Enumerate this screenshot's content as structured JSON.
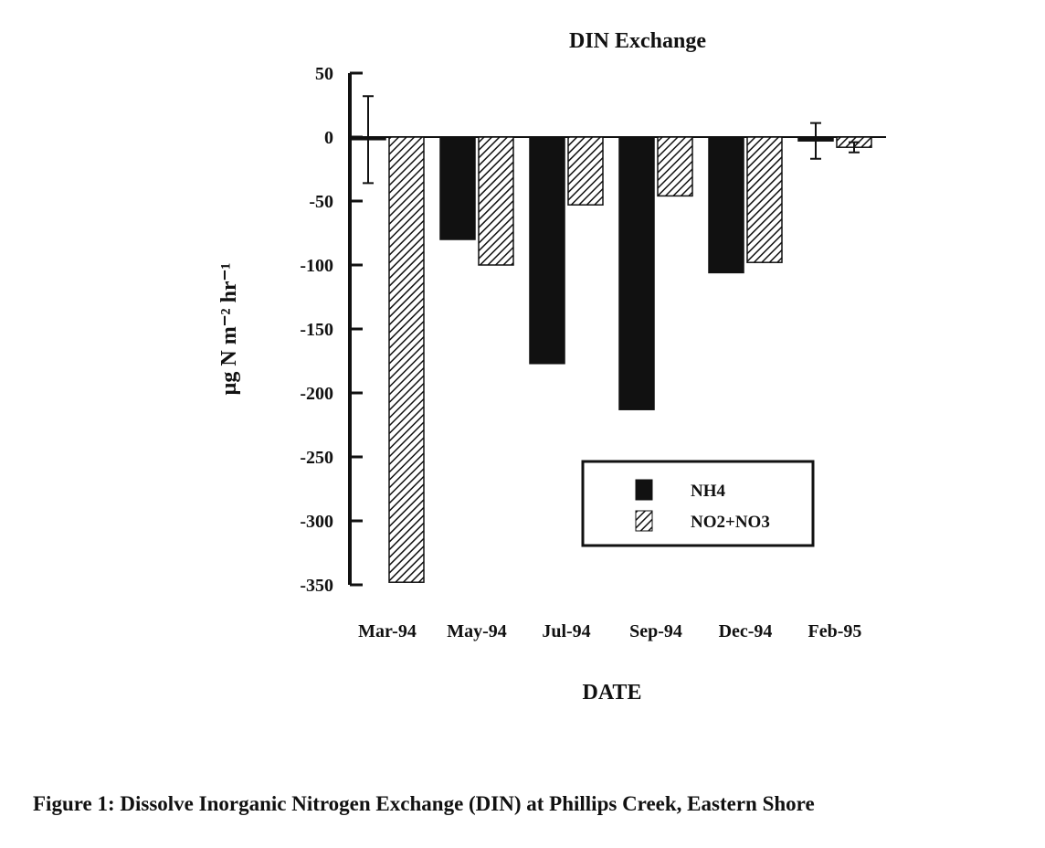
{
  "chart_data": {
    "type": "bar",
    "title": "DIN Exchange",
    "y_label": "µg N m⁻² hr⁻¹",
    "x_label": "DATE",
    "caption": "Figure 1: Dissolve Inorganic Nitrogen Exchange (DIN) at Phillips Creek, Eastern Shore",
    "categories": [
      "Mar-94",
      "May-94",
      "Jul-94",
      "Sep-94",
      "Dec-94",
      "Feb-95"
    ],
    "series": [
      {
        "name": "NH4",
        "color": "#111111",
        "fill": "solid",
        "values": [
          -2,
          -80,
          -177,
          -213,
          -106,
          -3
        ],
        "errors": [
          34,
          null,
          null,
          null,
          null,
          14
        ]
      },
      {
        "name": "NO2+NO3",
        "color": "#111111",
        "fill": "hatch",
        "values": [
          -348,
          -100,
          -53,
          -46,
          -98,
          -8
        ],
        "errors": [
          null,
          null,
          null,
          null,
          null,
          4
        ]
      }
    ],
    "ylim": [
      -350,
      50
    ],
    "yticks": [
      50,
      0,
      -50,
      -100,
      -150,
      -200,
      -250,
      -300,
      -350
    ],
    "legend": "lower-right"
  }
}
